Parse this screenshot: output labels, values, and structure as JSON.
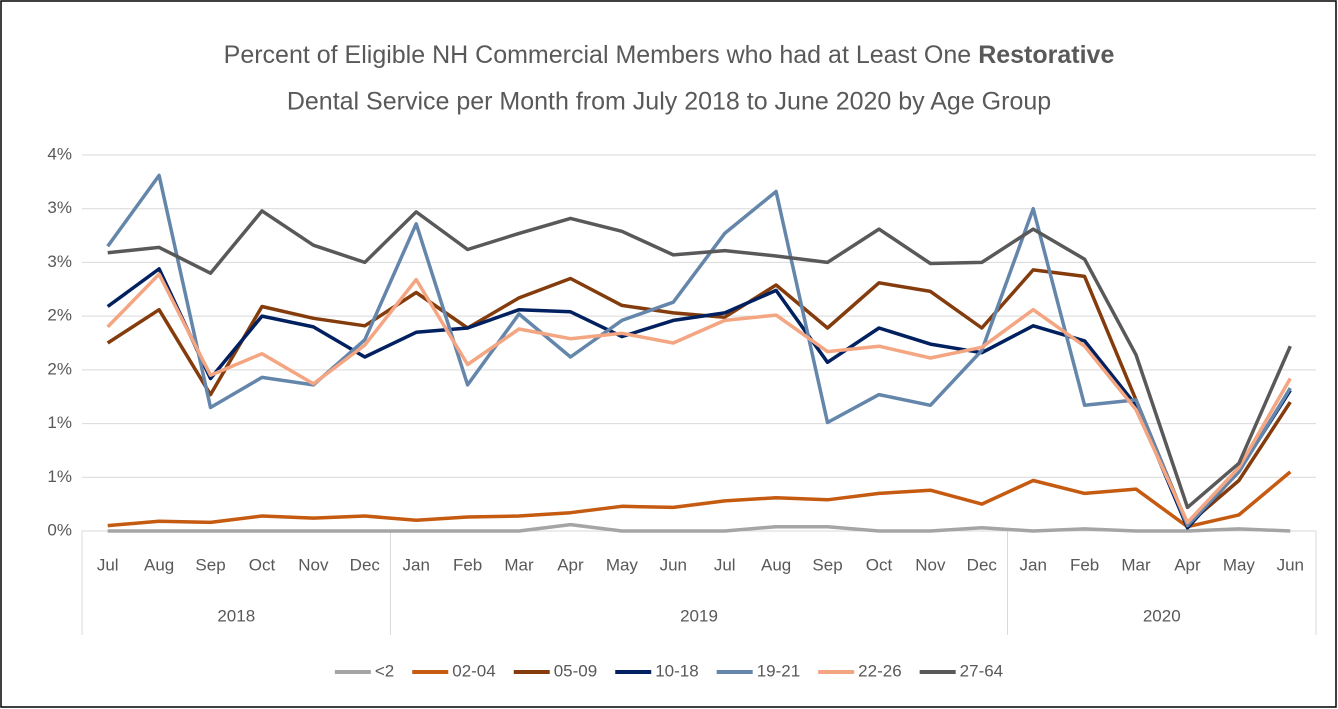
{
  "chart_data": {
    "type": "line",
    "title": [
      "Percent of Eligible NH Commercial Members who had at Least One",
      "Restorative",
      "Dental Service per Month from July 2018 to June 2020 by Age Group"
    ],
    "categories": [
      "Jul",
      "Aug",
      "Sep",
      "Oct",
      "Nov",
      "Dec",
      "Jan",
      "Feb",
      "Mar",
      "Apr",
      "May",
      "Jun",
      "Jul",
      "Aug",
      "Sep",
      "Oct",
      "Nov",
      "Dec",
      "Jan",
      "Feb",
      "Mar",
      "Apr",
      "May",
      "Jun"
    ],
    "groups": [
      {
        "label": "2018",
        "size": 6
      },
      {
        "label": "2019",
        "size": 12
      },
      {
        "label": "2020",
        "size": 6
      }
    ],
    "ylim": [
      0,
      3.5
    ],
    "yticks": [
      {
        "value": 0,
        "label": "0%"
      },
      {
        "value": 0.5,
        "label": "1%"
      },
      {
        "value": 1,
        "label": "1%"
      },
      {
        "value": 1.5,
        "label": "2%"
      },
      {
        "value": 2,
        "label": "2%"
      },
      {
        "value": 2.5,
        "label": "3%"
      },
      {
        "value": 3,
        "label": "3%"
      },
      {
        "value": 3.5,
        "label": "4%"
      }
    ],
    "grid": true,
    "legend": "bottom",
    "series": [
      {
        "name": "<2",
        "color": "#a5a5a5",
        "values": [
          0,
          0,
          0,
          0,
          0,
          0,
          0,
          0,
          0,
          0.06,
          0,
          0,
          0,
          0.04,
          0.04,
          0,
          0,
          0.03,
          0,
          0.02,
          0,
          0,
          0.02,
          0
        ]
      },
      {
        "name": "02-04",
        "color": "#c55a11",
        "values": [
          0.05,
          0.09,
          0.08,
          0.14,
          0.12,
          0.14,
          0.1,
          0.13,
          0.14,
          0.17,
          0.23,
          0.22,
          0.28,
          0.31,
          0.29,
          0.35,
          0.38,
          0.25,
          0.47,
          0.35,
          0.39,
          0.04,
          0.15,
          0.55
        ]
      },
      {
        "name": "05-09",
        "color": "#843c0c",
        "values": [
          1.75,
          2.06,
          1.27,
          2.09,
          1.98,
          1.91,
          2.22,
          1.89,
          2.17,
          2.35,
          2.1,
          2.03,
          1.99,
          2.29,
          1.89,
          2.31,
          2.23,
          1.89,
          2.43,
          2.37,
          1.22,
          0.06,
          0.47,
          1.2
        ]
      },
      {
        "name": "10-18",
        "color": "#002060",
        "values": [
          2.09,
          2.44,
          1.42,
          2.0,
          1.9,
          1.62,
          1.85,
          1.89,
          2.06,
          2.04,
          1.81,
          1.96,
          2.03,
          2.24,
          1.57,
          1.89,
          1.74,
          1.66,
          1.91,
          1.77,
          1.17,
          0.03,
          0.56,
          1.31
        ]
      },
      {
        "name": "19-21",
        "color": "#6586ab",
        "values": [
          2.65,
          3.31,
          1.15,
          1.43,
          1.36,
          1.78,
          2.86,
          1.36,
          2.02,
          1.62,
          1.96,
          2.13,
          2.77,
          3.16,
          1.01,
          1.27,
          1.17,
          1.68,
          3.0,
          1.17,
          1.22,
          0.05,
          0.55,
          1.33
        ]
      },
      {
        "name": "22-26",
        "color": "#f4a582",
        "values": [
          1.9,
          2.39,
          1.45,
          1.65,
          1.37,
          1.73,
          2.34,
          1.55,
          1.88,
          1.79,
          1.84,
          1.75,
          1.96,
          2.01,
          1.67,
          1.72,
          1.61,
          1.71,
          2.06,
          1.72,
          1.13,
          0.08,
          0.59,
          1.42
        ]
      },
      {
        "name": "27-64",
        "color": "#595959",
        "values": [
          2.59,
          2.64,
          2.4,
          2.98,
          2.66,
          2.5,
          2.97,
          2.62,
          2.77,
          2.91,
          2.79,
          2.57,
          2.61,
          2.56,
          2.5,
          2.81,
          2.49,
          2.5,
          2.81,
          2.53,
          1.64,
          0.22,
          0.63,
          1.72
        ]
      }
    ]
  }
}
